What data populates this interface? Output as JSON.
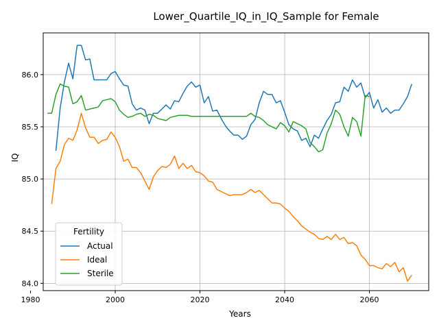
{
  "chart_data": {
    "type": "line",
    "title": "Lower_Quartile_IQ_in_IQ_Sample for Female",
    "xlabel": "Years",
    "ylabel": "IQ",
    "xlim": [
      1983,
      2074
    ],
    "ylim": [
      83.93,
      86.4
    ],
    "xticks": [
      1980,
      2000,
      2020,
      2040,
      2060
    ],
    "yticks": [
      84.0,
      84.5,
      85.0,
      85.5,
      86.0
    ],
    "grid": true,
    "legend": {
      "title": "Fertility",
      "placement": "lower-left"
    },
    "series": [
      {
        "name": "Actual",
        "color": "#1f77b4",
        "x": [
          1986,
          1987,
          1988,
          1989,
          1990,
          1991,
          1992,
          1993,
          1994,
          1995,
          1996,
          1997,
          1998,
          1999,
          2000,
          2001,
          2002,
          2003,
          2004,
          2005,
          2006,
          2007,
          2008,
          2009,
          2010,
          2011,
          2012,
          2013,
          2014,
          2015,
          2016,
          2017,
          2018,
          2019,
          2020,
          2021,
          2022,
          2023,
          2024,
          2025,
          2026,
          2027,
          2028,
          2029,
          2030,
          2031,
          2032,
          2033,
          2034,
          2035,
          2036,
          2037,
          2038,
          2039,
          2040,
          2041,
          2042,
          2043,
          2044,
          2045,
          2046,
          2047,
          2048,
          2049,
          2050,
          2051,
          2052,
          2053,
          2054,
          2055,
          2056,
          2057,
          2058,
          2059,
          2060,
          2061,
          2062,
          2063,
          2064,
          2065,
          2066,
          2067,
          2068,
          2069,
          2070
        ],
        "y": [
          85.27,
          85.68,
          85.93,
          86.11,
          85.96,
          86.28,
          86.28,
          86.14,
          86.15,
          85.95,
          85.95,
          85.95,
          85.95,
          86.01,
          86.03,
          85.96,
          85.9,
          85.89,
          85.72,
          85.66,
          85.68,
          85.66,
          85.53,
          85.63,
          85.63,
          85.67,
          85.71,
          85.67,
          85.75,
          85.74,
          85.82,
          85.89,
          85.93,
          85.88,
          85.9,
          85.73,
          85.79,
          85.65,
          85.66,
          85.58,
          85.51,
          85.46,
          85.42,
          85.42,
          85.38,
          85.41,
          85.52,
          85.57,
          85.73,
          85.84,
          85.81,
          85.81,
          85.73,
          85.75,
          85.64,
          85.52,
          85.48,
          85.46,
          85.37,
          85.39,
          85.31,
          85.42,
          85.39,
          85.48,
          85.56,
          85.62,
          85.73,
          85.74,
          85.88,
          85.84,
          85.95,
          85.88,
          85.92,
          85.78,
          85.83,
          85.68,
          85.76,
          85.64,
          85.68,
          85.63,
          85.66,
          85.66,
          85.72,
          85.79,
          85.91
        ]
      },
      {
        "name": "Ideal",
        "color": "#ff7f0e",
        "x": [
          1985,
          1986,
          1987,
          1988,
          1989,
          1990,
          1991,
          1992,
          1993,
          1994,
          1995,
          1996,
          1997,
          1998,
          1999,
          2000,
          2001,
          2002,
          2003,
          2004,
          2005,
          2006,
          2007,
          2008,
          2009,
          2010,
          2011,
          2012,
          2013,
          2014,
          2015,
          2016,
          2017,
          2018,
          2019,
          2020,
          2021,
          2022,
          2023,
          2024,
          2025,
          2026,
          2027,
          2028,
          2029,
          2030,
          2031,
          2032,
          2033,
          2034,
          2035,
          2036,
          2037,
          2038,
          2039,
          2040,
          2041,
          2042,
          2043,
          2044,
          2045,
          2046,
          2047,
          2048,
          2049,
          2050,
          2051,
          2052,
          2053,
          2054,
          2055,
          2056,
          2057,
          2058,
          2059,
          2060,
          2061,
          2062,
          2063,
          2064,
          2065,
          2066,
          2067,
          2068,
          2069,
          2070
        ],
        "y": [
          84.76,
          85.1,
          85.17,
          85.33,
          85.39,
          85.37,
          85.47,
          85.63,
          85.49,
          85.4,
          85.4,
          85.34,
          85.37,
          85.38,
          85.45,
          85.4,
          85.31,
          85.17,
          85.19,
          85.11,
          85.11,
          85.06,
          84.98,
          84.9,
          85.02,
          85.08,
          85.12,
          85.11,
          85.14,
          85.22,
          85.1,
          85.15,
          85.1,
          85.13,
          85.07,
          85.06,
          85.03,
          84.98,
          84.97,
          84.9,
          84.88,
          84.86,
          84.84,
          84.85,
          84.85,
          84.85,
          84.87,
          84.9,
          84.87,
          84.89,
          84.85,
          84.81,
          84.77,
          84.77,
          84.76,
          84.72,
          84.69,
          84.64,
          84.6,
          84.55,
          84.52,
          84.49,
          84.47,
          84.43,
          84.42,
          84.45,
          84.42,
          84.47,
          84.42,
          84.44,
          84.38,
          84.39,
          84.36,
          84.27,
          84.23,
          84.17,
          84.17,
          84.15,
          84.14,
          84.19,
          84.16,
          84.2,
          84.11,
          84.15,
          84.02,
          84.08
        ]
      },
      {
        "name": "Sterile",
        "color": "#2ca02c",
        "x": [
          1984,
          1985,
          1986,
          1987,
          1988,
          1989,
          1990,
          1991,
          1992,
          1993,
          1994,
          1995,
          1996,
          1997,
          1998,
          1999,
          2000,
          2001,
          2002,
          2003,
          2004,
          2005,
          2006,
          2007,
          2008,
          2009,
          2010,
          2011,
          2012,
          2013,
          2014,
          2015,
          2016,
          2017,
          2018,
          2019,
          2020,
          2021,
          2022,
          2023,
          2024,
          2025,
          2026,
          2027,
          2028,
          2029,
          2030,
          2031,
          2032,
          2033,
          2034,
          2035,
          2036,
          2037,
          2038,
          2039,
          2040,
          2041,
          2042,
          2043,
          2044,
          2045,
          2046,
          2047,
          2048,
          2049,
          2050,
          2051,
          2052,
          2053,
          2054,
          2055,
          2056,
          2057,
          2058,
          2059,
          2060
        ],
        "y": [
          85.63,
          85.63,
          85.81,
          85.91,
          85.89,
          85.88,
          85.72,
          85.74,
          85.8,
          85.66,
          85.67,
          85.68,
          85.69,
          85.75,
          85.76,
          85.77,
          85.74,
          85.66,
          85.62,
          85.59,
          85.6,
          85.62,
          85.63,
          85.6,
          85.62,
          85.61,
          85.58,
          85.57,
          85.56,
          85.59,
          85.6,
          85.61,
          85.61,
          85.61,
          85.6,
          85.6,
          85.6,
          85.6,
          85.6,
          85.6,
          85.6,
          85.6,
          85.6,
          85.6,
          85.6,
          85.6,
          85.6,
          85.6,
          85.63,
          85.6,
          85.59,
          85.56,
          85.52,
          85.5,
          85.48,
          85.54,
          85.51,
          85.45,
          85.55,
          85.53,
          85.51,
          85.48,
          85.35,
          85.31,
          85.26,
          85.28,
          85.44,
          85.53,
          85.66,
          85.62,
          85.5,
          85.41,
          85.59,
          85.55,
          85.41,
          85.8,
          85.79
        ]
      }
    ]
  }
}
